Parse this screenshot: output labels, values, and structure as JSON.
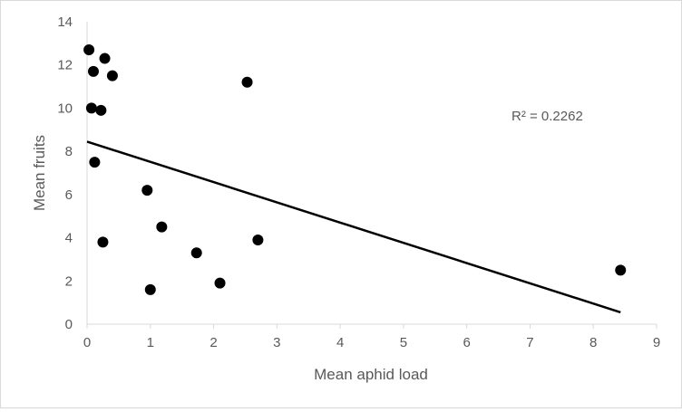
{
  "chart_data": {
    "type": "scatter",
    "title": "",
    "xlabel": "Mean aphid load",
    "ylabel": "Mean fruits",
    "xlim": [
      0,
      9
    ],
    "ylim": [
      0,
      14
    ],
    "x_ticks": [
      "0",
      "1",
      "2",
      "3",
      "4",
      "5",
      "6",
      "7",
      "8",
      "9"
    ],
    "y_ticks": [
      "0",
      "2",
      "4",
      "6",
      "8",
      "10",
      "12",
      "14"
    ],
    "grid": false,
    "legend": "none",
    "marker_color": "#000000",
    "points": [
      {
        "x": 0.03,
        "y": 12.7
      },
      {
        "x": 0.1,
        "y": 11.7
      },
      {
        "x": 0.28,
        "y": 12.3
      },
      {
        "x": 0.4,
        "y": 11.5
      },
      {
        "x": 0.07,
        "y": 10.0
      },
      {
        "x": 0.22,
        "y": 9.9
      },
      {
        "x": 0.12,
        "y": 7.5
      },
      {
        "x": 0.25,
        "y": 3.8
      },
      {
        "x": 0.95,
        "y": 6.2
      },
      {
        "x": 1.18,
        "y": 4.5
      },
      {
        "x": 1.0,
        "y": 1.6
      },
      {
        "x": 1.73,
        "y": 3.3
      },
      {
        "x": 2.1,
        "y": 1.9
      },
      {
        "x": 2.53,
        "y": 11.2
      },
      {
        "x": 2.7,
        "y": 3.9
      },
      {
        "x": 8.43,
        "y": 2.5
      }
    ],
    "trendline": {
      "type": "linear",
      "x": [
        0.0,
        8.43
      ],
      "y": [
        8.45,
        0.55
      ],
      "annotation": "R² = 0.2262"
    }
  }
}
